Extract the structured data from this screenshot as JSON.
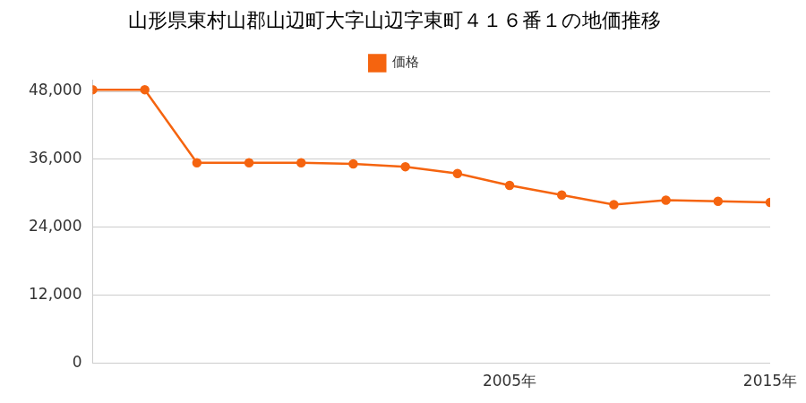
{
  "chart_data": {
    "type": "line",
    "title": "山形県東村山郡山辺町大字山辺字東町４１６番１の地価推移",
    "categories": [
      null,
      null,
      null,
      null,
      null,
      null,
      null,
      null,
      "2005年",
      null,
      null,
      null,
      null,
      "2015年"
    ],
    "series": [
      {
        "name": "価格",
        "color": "#f5640f",
        "marker": "circle",
        "values": [
          48300,
          48300,
          35400,
          35400,
          35400,
          35200,
          34700,
          33500,
          31400,
          29700,
          28000,
          28800,
          28600,
          28400
        ]
      }
    ],
    "ylim": [
      0,
      50000
    ],
    "yticks": [
      0,
      {
        "value": 12000,
        "label": "12,000"
      },
      {
        "value": 24000,
        "label": "24,000"
      },
      {
        "value": 36000,
        "label": "36,000"
      },
      {
        "value": 48000,
        "label": "48,000"
      }
    ],
    "grid": true,
    "legend": "top"
  }
}
